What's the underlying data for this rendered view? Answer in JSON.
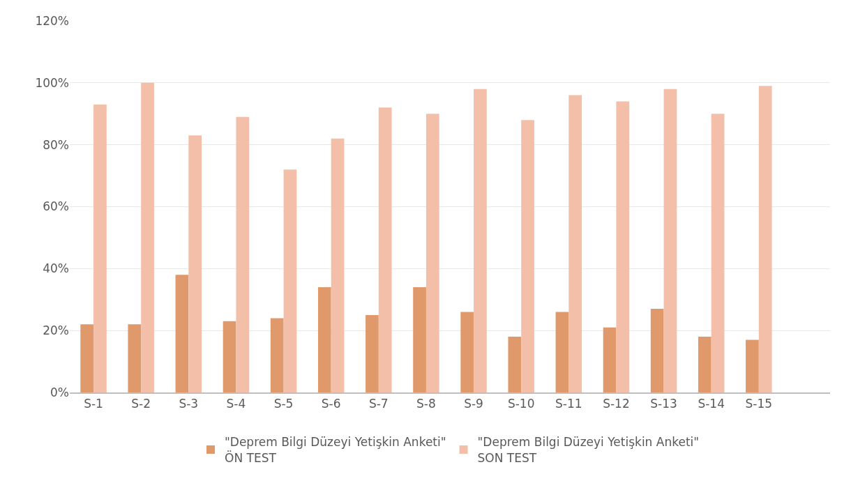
{
  "chart_data": {
    "type": "bar",
    "categories": [
      "S-1",
      "S-2",
      "S-3",
      "S-4",
      "S-5",
      "S-6",
      "S-7",
      "S-8",
      "S-9",
      "S-10",
      "S-11",
      "S-12",
      "S-13",
      "S-14",
      "S-15",
      null
    ],
    "series": [
      {
        "name": "\"Deprem Bilgi Düzeyi Yetişkin Anketi\"\nÖN TEST",
        "color": "#e0996a",
        "values": [
          22,
          22,
          38,
          23,
          24,
          34,
          25,
          34,
          26,
          18,
          26,
          21,
          27,
          18,
          17,
          null
        ]
      },
      {
        "name": "\"Deprem Bilgi Düzeyi Yetişkin Anketi\"\nSON TEST",
        "color": "#f4bfa8",
        "values": [
          93,
          100,
          83,
          89,
          72,
          82,
          92,
          90,
          98,
          88,
          96,
          94,
          98,
          90,
          99,
          null
        ]
      }
    ],
    "ylim": [
      0,
      120
    ],
    "yticks": [
      {
        "value": 0,
        "label": "0%"
      },
      {
        "value": 20,
        "label": "20%"
      },
      {
        "value": 40,
        "label": "40%"
      },
      {
        "value": 60,
        "label": "60%"
      },
      {
        "value": 80,
        "label": "80%"
      },
      {
        "value": 100,
        "label": "100%"
      },
      {
        "value": 120,
        "label": "120%"
      }
    ],
    "grid": "y",
    "legend": "bottom"
  }
}
